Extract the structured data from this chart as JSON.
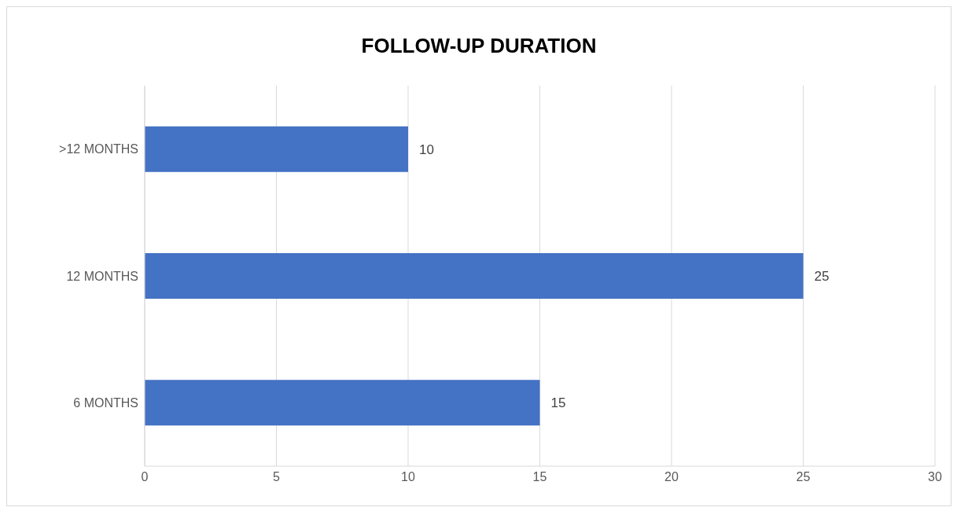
{
  "chart_data": {
    "type": "bar",
    "orientation": "horizontal",
    "title": "FOLLOW-UP DURATION",
    "categories": [
      ">12 MONTHS",
      "12 MONTHS",
      "6 MONTHS"
    ],
    "values": [
      10,
      25,
      15
    ],
    "color": "#4472c4",
    "xlim": [
      0,
      30
    ],
    "xticks": [
      0,
      5,
      10,
      15,
      20,
      25,
      30
    ],
    "grid": "x",
    "data_labels": true,
    "legend": false
  }
}
